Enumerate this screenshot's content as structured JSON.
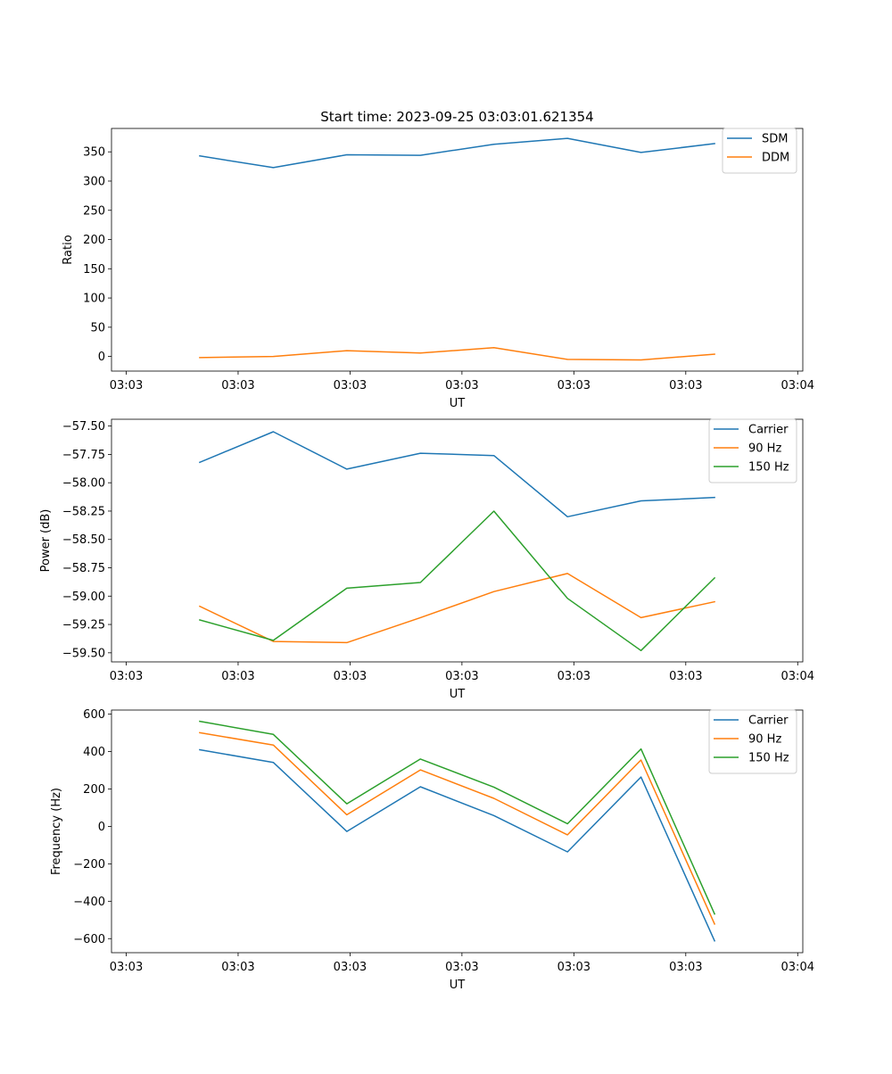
{
  "title": "Start time: 2023-09-25 03:03:01.621354",
  "colors": {
    "series1": "#1f77b4",
    "series2": "#ff7f0e",
    "series3": "#2ca02c"
  },
  "chart_data": [
    {
      "type": "line",
      "title": "Start time: 2023-09-25 03:03:01.621354",
      "xlabel": "UT",
      "ylabel": "Ratio",
      "x": [
        1,
        2,
        3,
        4,
        5,
        6,
        7,
        8
      ],
      "xlim": [
        -0.2,
        9.2
      ],
      "x_ticks": [
        0,
        1.5217,
        3.0435,
        4.5652,
        6.087,
        7.6087,
        9.1304
      ],
      "x_tick_labels": [
        "03:03",
        "03:03",
        "03:03",
        "03:03",
        "03:03",
        "03:03",
        "03:04"
      ],
      "ylim": [
        -25,
        390
      ],
      "y_ticks": [
        0,
        50,
        100,
        150,
        200,
        250,
        300,
        350
      ],
      "y_tick_labels": [
        "0",
        "50",
        "100",
        "150",
        "200",
        "250",
        "300",
        "350"
      ],
      "legend": "top-right",
      "series": [
        {
          "name": "SDM",
          "values": [
            343,
            323,
            345,
            344,
            363,
            373,
            349,
            364
          ]
        },
        {
          "name": "DDM",
          "values": [
            -2,
            0,
            10,
            6,
            15,
            -5,
            -6,
            4
          ]
        }
      ]
    },
    {
      "type": "line",
      "title": "",
      "xlabel": "UT",
      "ylabel": "Power (dB)",
      "x": [
        1,
        2,
        3,
        4,
        5,
        6,
        7,
        8
      ],
      "xlim": [
        -0.2,
        9.2
      ],
      "x_ticks": [
        0,
        1.5217,
        3.0435,
        4.5652,
        6.087,
        7.6087,
        9.1304
      ],
      "x_tick_labels": [
        "03:03",
        "03:03",
        "03:03",
        "03:03",
        "03:03",
        "03:03",
        "03:04"
      ],
      "ylim": [
        -59.58,
        -57.44
      ],
      "y_ticks": [
        -57.5,
        -57.75,
        -58.0,
        -58.25,
        -58.5,
        -58.75,
        -59.0,
        -59.25,
        -59.5
      ],
      "y_tick_labels": [
        "−57.50",
        "−57.75",
        "−58.00",
        "−58.25",
        "−58.50",
        "−58.75",
        "−59.00",
        "−59.25",
        "−59.50"
      ],
      "legend": "top-right",
      "series": [
        {
          "name": "Carrier",
          "values": [
            -57.82,
            -57.55,
            -57.88,
            -57.74,
            -57.76,
            -58.3,
            -58.16,
            -58.13
          ]
        },
        {
          "name": "90 Hz",
          "values": [
            -59.09,
            -59.4,
            -59.41,
            -59.19,
            -58.96,
            -58.8,
            -59.19,
            -59.05
          ]
        },
        {
          "name": "150 Hz",
          "values": [
            -59.21,
            -59.39,
            -58.93,
            -58.88,
            -58.25,
            -59.02,
            -59.48,
            -58.84
          ]
        }
      ]
    },
    {
      "type": "line",
      "title": "",
      "xlabel": "UT",
      "ylabel": "Frequency (Hz)",
      "x": [
        1,
        2,
        3,
        4,
        5,
        6,
        7,
        8
      ],
      "xlim": [
        -0.2,
        9.2
      ],
      "x_ticks": [
        0,
        1.5217,
        3.0435,
        4.5652,
        6.087,
        7.6087,
        9.1304
      ],
      "x_tick_labels": [
        "03:03",
        "03:03",
        "03:03",
        "03:03",
        "03:03",
        "03:03",
        "03:04"
      ],
      "ylim": [
        -675,
        622
      ],
      "y_ticks": [
        -600,
        -400,
        -200,
        0,
        200,
        400,
        600
      ],
      "y_tick_labels": [
        "−600",
        "−400",
        "−200",
        "0",
        "200",
        "400",
        "600"
      ],
      "legend": "top-right",
      "series": [
        {
          "name": "Carrier",
          "values": [
            410,
            342,
            -27,
            212,
            58,
            -136,
            264,
            -612
          ]
        },
        {
          "name": "90 Hz",
          "values": [
            501,
            435,
            62,
            302,
            150,
            -45,
            355,
            -522
          ]
        },
        {
          "name": "150 Hz",
          "values": [
            562,
            492,
            121,
            360,
            210,
            14,
            414,
            -468
          ]
        }
      ]
    }
  ]
}
